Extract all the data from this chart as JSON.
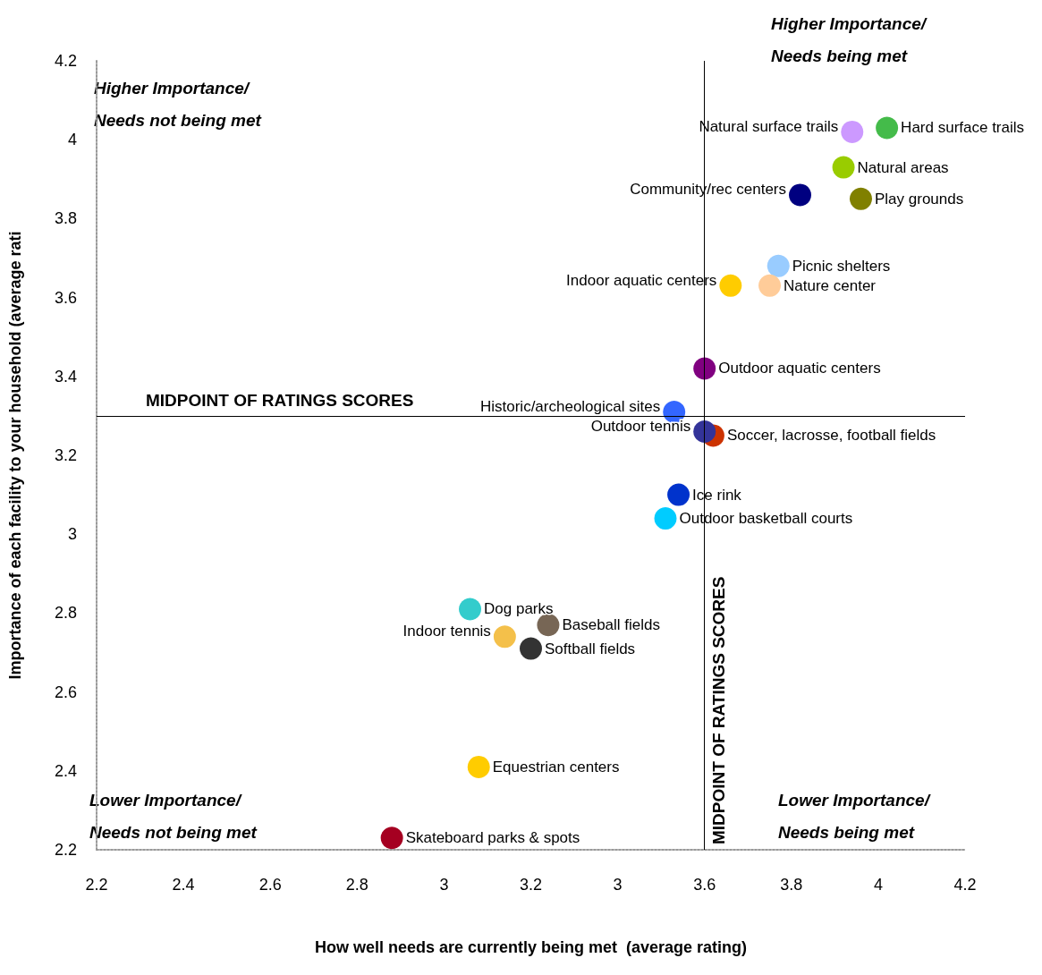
{
  "chart_data": {
    "type": "scatter",
    "xlabel": "How well needs are currently being met  (average rating)",
    "ylabel": "Importance of each facility to your household (average rati",
    "xlim": [
      2.2,
      4.2
    ],
    "xticks": [
      2.2,
      2.4,
      2.6,
      2.8,
      3,
      3.2,
      {
        "value": 3.4,
        "label": "3"
      },
      3.6,
      3.8,
      4,
      4.2
    ],
    "ylim": [
      2.2,
      4.2
    ],
    "yticks": [
      2.2,
      2.4,
      2.6,
      2.8,
      3,
      3.2,
      3.4,
      3.6,
      3.8,
      4,
      4.2
    ],
    "grid": false,
    "legend": false,
    "marker": "circle",
    "ref_lines": [
      {
        "axis": "y",
        "value": 3.3,
        "label": "MIDPOINT OF RATINGS SCORES"
      },
      {
        "axis": "x",
        "value": 3.6,
        "label": "MIDPOINT OF RATINGS SCORES"
      }
    ],
    "annotations": [
      "Higher Importance/\nNeeds not being met",
      "Higher Importance/\nNeeds being met",
      "Lower Importance/\nNeeds not being met",
      "Lower Importance/\nNeeds being met"
    ],
    "series": [
      {
        "name": "Hard surface trails",
        "color": "#44bb4a",
        "x": [
          4.02
        ],
        "values": [
          4.03
        ]
      },
      {
        "name": "Natural surface trails",
        "color": "#cc99ff",
        "x": [
          3.94
        ],
        "values": [
          4.02
        ]
      },
      {
        "name": "Natural areas",
        "color": "#99cc00",
        "x": [
          3.92
        ],
        "values": [
          3.93
        ]
      },
      {
        "name": "Community/rec centers",
        "color": "#000080",
        "x": [
          3.82
        ],
        "values": [
          3.86
        ]
      },
      {
        "name": "Play grounds",
        "color": "#808000",
        "x": [
          3.96
        ],
        "values": [
          3.85
        ]
      },
      {
        "name": "Picnic shelters",
        "color": "#99ccff",
        "x": [
          3.77
        ],
        "values": [
          3.68
        ]
      },
      {
        "name": "Nature center",
        "color": "#ffcc99",
        "x": [
          3.75
        ],
        "values": [
          3.63
        ]
      },
      {
        "name": "Indoor aquatic centers",
        "color": "#ffcc00",
        "x": [
          3.66
        ],
        "values": [
          3.63
        ]
      },
      {
        "name": "Outdoor aquatic centers",
        "color": "#800080",
        "x": [
          3.6
        ],
        "values": [
          3.42
        ]
      },
      {
        "name": "Historic/archeological sites",
        "color": "#3366ff",
        "x": [
          3.53
        ],
        "values": [
          3.31
        ]
      },
      {
        "name": "Soccer, lacrosse, football fields",
        "color": "#cc3300",
        "x": [
          3.62
        ],
        "values": [
          3.25
        ]
      },
      {
        "name": "Outdoor tennis",
        "color": "#333399",
        "x": [
          3.6
        ],
        "values": [
          3.26
        ]
      },
      {
        "name": "Ice rink",
        "color": "#0033cc",
        "x": [
          3.54
        ],
        "values": [
          3.1
        ]
      },
      {
        "name": "Outdoor basketball courts",
        "color": "#00ccff",
        "x": [
          3.51
        ],
        "values": [
          3.04
        ]
      },
      {
        "name": "Dog parks",
        "color": "#33cccc",
        "x": [
          3.06
        ],
        "values": [
          2.81
        ]
      },
      {
        "name": "Baseball fields",
        "color": "#776655",
        "x": [
          3.24
        ],
        "values": [
          2.77
        ]
      },
      {
        "name": "Indoor tennis",
        "color": "#f4c04a",
        "x": [
          3.14
        ],
        "values": [
          2.74
        ]
      },
      {
        "name": "Softball fields",
        "color": "#333333",
        "x": [
          3.2
        ],
        "values": [
          2.71
        ]
      },
      {
        "name": "Equestrian centers",
        "color": "#ffcc00",
        "x": [
          3.08
        ],
        "values": [
          2.41
        ]
      },
      {
        "name": "Skateboard parks & spots",
        "color": "#a50021",
        "x": [
          2.88
        ],
        "values": [
          2.23
        ]
      }
    ]
  }
}
